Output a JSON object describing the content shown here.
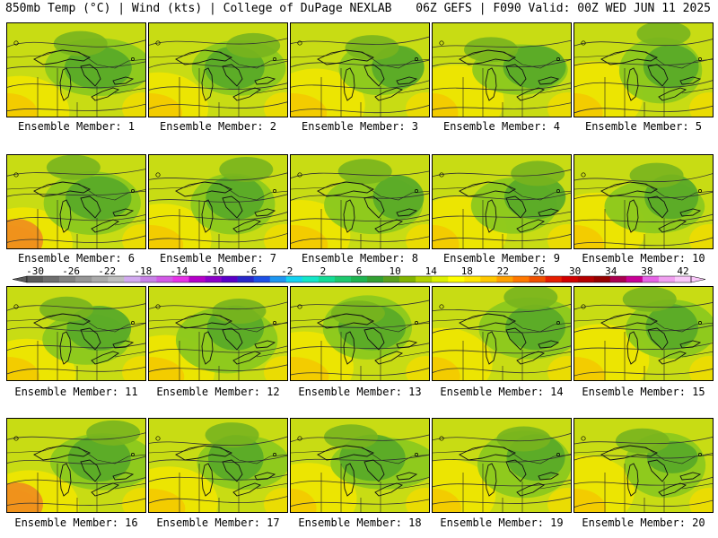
{
  "header": {
    "left": "850mb Temp (°C) | Wind (kts) | College of DuPage NEXLAB",
    "right": "06Z GEFS | F090 Valid: 00Z WED JUN 11 2025"
  },
  "caption_prefix": "Ensemble Member:",
  "members": [
    {
      "number": "1"
    },
    {
      "number": "2"
    },
    {
      "number": "3"
    },
    {
      "number": "4"
    },
    {
      "number": "5"
    },
    {
      "number": "6"
    },
    {
      "number": "7"
    },
    {
      "number": "8"
    },
    {
      "number": "9"
    },
    {
      "number": "10"
    },
    {
      "number": "11"
    },
    {
      "number": "12"
    },
    {
      "number": "13"
    },
    {
      "number": "14"
    },
    {
      "number": "15"
    },
    {
      "number": "16"
    },
    {
      "number": "17"
    },
    {
      "number": "18"
    },
    {
      "number": "19"
    },
    {
      "number": "20"
    }
  ],
  "colorbar": {
    "labels": [
      "-30",
      "-26",
      "-22",
      "-18",
      "-14",
      "-10",
      "-6",
      "-2",
      "2",
      "6",
      "10",
      "14",
      "18",
      "22",
      "26",
      "30",
      "34",
      "38",
      "42"
    ],
    "colors": [
      "#5a5a5a",
      "#6e6e6e",
      "#828282",
      "#969696",
      "#aaaaaa",
      "#bebebe",
      "#d2aaf0",
      "#c882e6",
      "#d25ae6",
      "#e632e6",
      "#b400c8",
      "#8c00c8",
      "#5a00c8",
      "#2828c8",
      "#1e50e6",
      "#1e96f0",
      "#14d2f0",
      "#14e6c8",
      "#14dc96",
      "#1ec86e",
      "#1eb450",
      "#32a032",
      "#5aa01e",
      "#82b400",
      "#b4d200",
      "#dcf000",
      "#ffff00",
      "#ffe600",
      "#ffc800",
      "#ffa000",
      "#ff7800",
      "#f05000",
      "#e61e00",
      "#d20000",
      "#b40000",
      "#960000",
      "#aa0050",
      "#c80096",
      "#e664e6",
      "#f0a0f0",
      "#fac8fa"
    ]
  }
}
